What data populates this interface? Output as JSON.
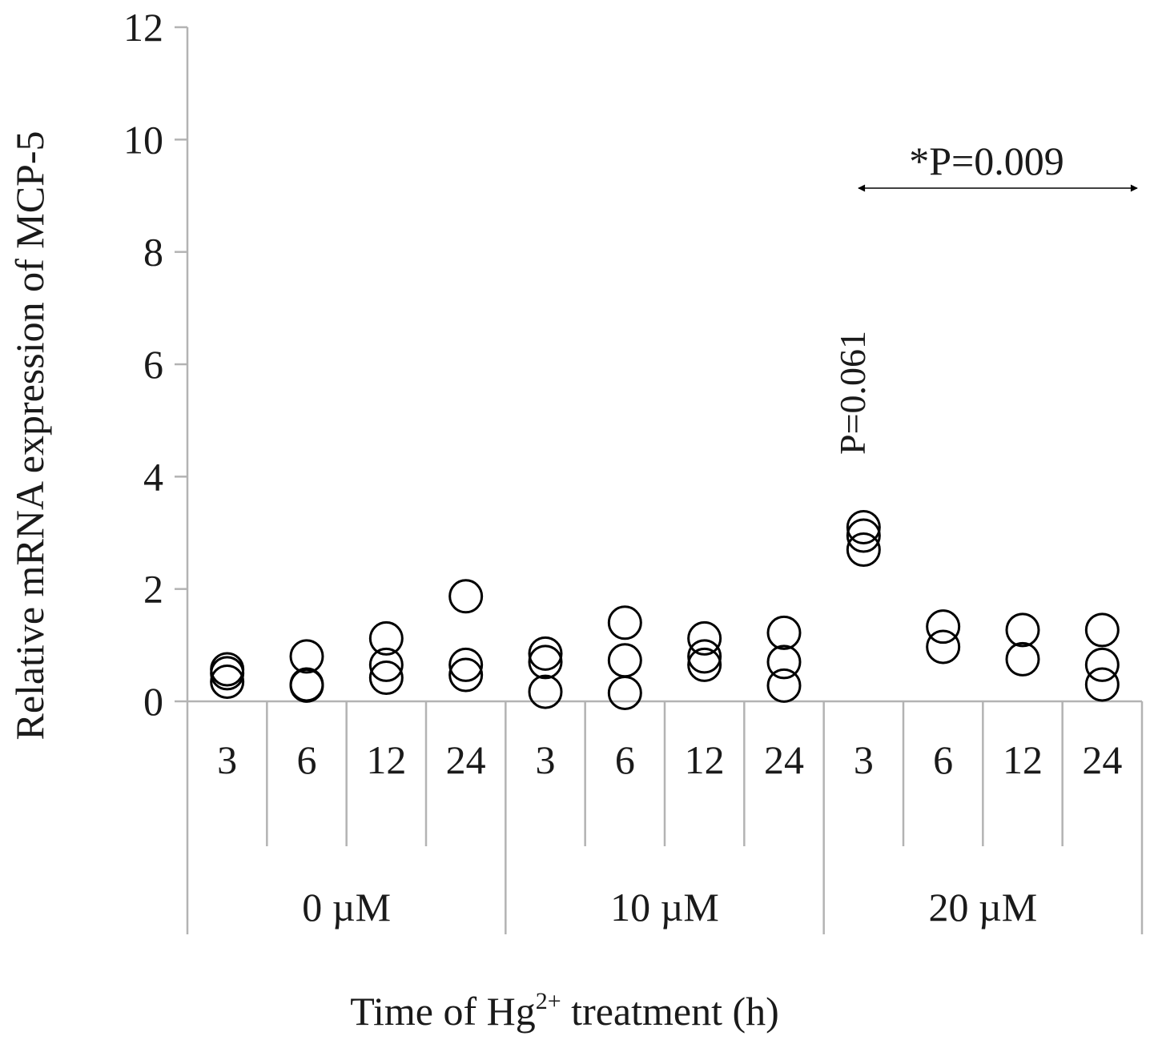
{
  "chart_data": {
    "type": "scatter",
    "ylabel": "Relative mRNA expression of MCP-5",
    "xlabel": {
      "prefix": "Time of Hg",
      "superscript": "2+",
      "suffix": " treatment (h)"
    },
    "ylim": [
      0,
      12
    ],
    "yticks": [
      "0",
      "2",
      "4",
      "6",
      "8",
      "10",
      "12"
    ],
    "grid": false,
    "groups": [
      {
        "label": "0 µM",
        "times": [
          {
            "label": "3",
            "values": [
              0.57,
              0.5,
              0.35
            ]
          },
          {
            "label": "6",
            "values": [
              0.8,
              0.3,
              0.28
            ]
          },
          {
            "label": "12",
            "values": [
              1.12,
              0.65,
              0.42
            ]
          },
          {
            "label": "24",
            "values": [
              1.87,
              0.65,
              0.47
            ]
          }
        ]
      },
      {
        "label": "10 µM",
        "times": [
          {
            "label": "3",
            "values": [
              0.85,
              0.7,
              0.17
            ]
          },
          {
            "label": "6",
            "values": [
              1.4,
              0.73,
              0.15
            ]
          },
          {
            "label": "12",
            "values": [
              1.12,
              0.8,
              0.65
            ]
          },
          {
            "label": "24",
            "values": [
              1.22,
              0.7,
              0.28
            ]
          }
        ]
      },
      {
        "label": "20 µM",
        "times": [
          {
            "label": "3",
            "values": [
              3.1,
              2.95,
              2.7
            ]
          },
          {
            "label": "6",
            "values": [
              1.33,
              0.97
            ]
          },
          {
            "label": "12",
            "values": [
              1.27,
              0.75
            ]
          },
          {
            "label": "24",
            "values": [
              1.27,
              0.65,
              0.3
            ]
          }
        ]
      }
    ],
    "annotations": {
      "vertical_p": "P=0.061",
      "bracket_p": "*P=0.009"
    },
    "marker": "open-circle",
    "colors": {
      "marker_stroke": "#000000",
      "axis": "#b3b3b3",
      "text": "#1a1a1a"
    }
  }
}
